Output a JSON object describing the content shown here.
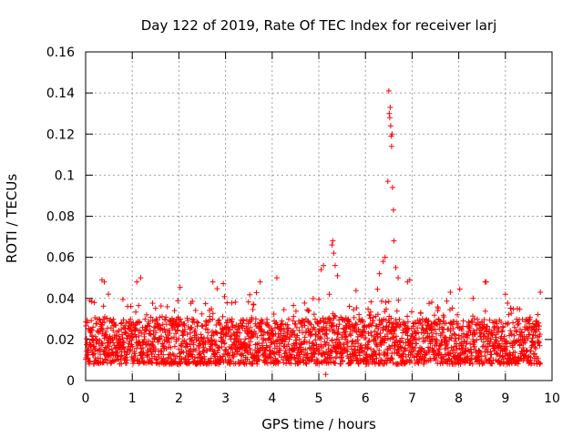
{
  "chart_data": {
    "type": "scatter",
    "title": "Day 122 of 2019, Rate Of TEC Index for receiver larj",
    "xlabel": "GPS time / hours",
    "ylabel": "ROTI / TECUs",
    "xlim": [
      0,
      10
    ],
    "ylim": [
      0,
      0.16
    ],
    "x_ticks": [
      0,
      1,
      2,
      3,
      4,
      5,
      6,
      7,
      8,
      9,
      10
    ],
    "y_ticks": [
      0,
      0.02,
      0.04,
      0.06,
      0.08,
      0.1,
      0.12,
      0.14,
      0.16
    ],
    "x_tick_labels": [
      "0",
      "1",
      "2",
      "3",
      "4",
      "5",
      "6",
      "7",
      "8",
      "9",
      "10"
    ],
    "y_tick_labels": [
      "0",
      "0.02",
      "0.04",
      "0.06",
      "0.08",
      "0.1",
      "0.12",
      "0.14",
      "0.16"
    ],
    "grid": true,
    "marker": "+",
    "color": "#ff0000",
    "x_data_range": [
      0.0,
      9.75
    ],
    "baseline_band": [
      0.008,
      0.03
    ],
    "series": [
      {
        "name": "ROTI",
        "notable_points": [
          {
            "x": 0.35,
            "y": 0.049
          },
          {
            "x": 0.4,
            "y": 0.048
          },
          {
            "x": 1.18,
            "y": 0.05
          },
          {
            "x": 4.1,
            "y": 0.05
          },
          {
            "x": 5.05,
            "y": 0.054
          },
          {
            "x": 5.1,
            "y": 0.056
          },
          {
            "x": 5.28,
            "y": 0.066
          },
          {
            "x": 5.3,
            "y": 0.068
          },
          {
            "x": 5.32,
            "y": 0.062
          },
          {
            "x": 5.35,
            "y": 0.056
          },
          {
            "x": 5.4,
            "y": 0.051
          },
          {
            "x": 5.15,
            "y": 0.003
          },
          {
            "x": 6.3,
            "y": 0.052
          },
          {
            "x": 6.38,
            "y": 0.058
          },
          {
            "x": 6.42,
            "y": 0.06
          },
          {
            "x": 6.48,
            "y": 0.097
          },
          {
            "x": 6.5,
            "y": 0.141
          },
          {
            "x": 6.51,
            "y": 0.13
          },
          {
            "x": 6.52,
            "y": 0.128
          },
          {
            "x": 6.53,
            "y": 0.133
          },
          {
            "x": 6.54,
            "y": 0.124
          },
          {
            "x": 6.55,
            "y": 0.119
          },
          {
            "x": 6.56,
            "y": 0.114
          },
          {
            "x": 6.57,
            "y": 0.12
          },
          {
            "x": 6.58,
            "y": 0.094
          },
          {
            "x": 6.6,
            "y": 0.083
          },
          {
            "x": 6.61,
            "y": 0.068
          },
          {
            "x": 6.65,
            "y": 0.055
          },
          {
            "x": 6.7,
            "y": 0.05
          },
          {
            "x": 6.9,
            "y": 0.048
          },
          {
            "x": 6.95,
            "y": 0.049
          },
          {
            "x": 7.82,
            "y": 0.043
          },
          {
            "x": 9.0,
            "y": 0.042
          },
          {
            "x": 9.75,
            "y": 0.043
          }
        ]
      }
    ]
  }
}
